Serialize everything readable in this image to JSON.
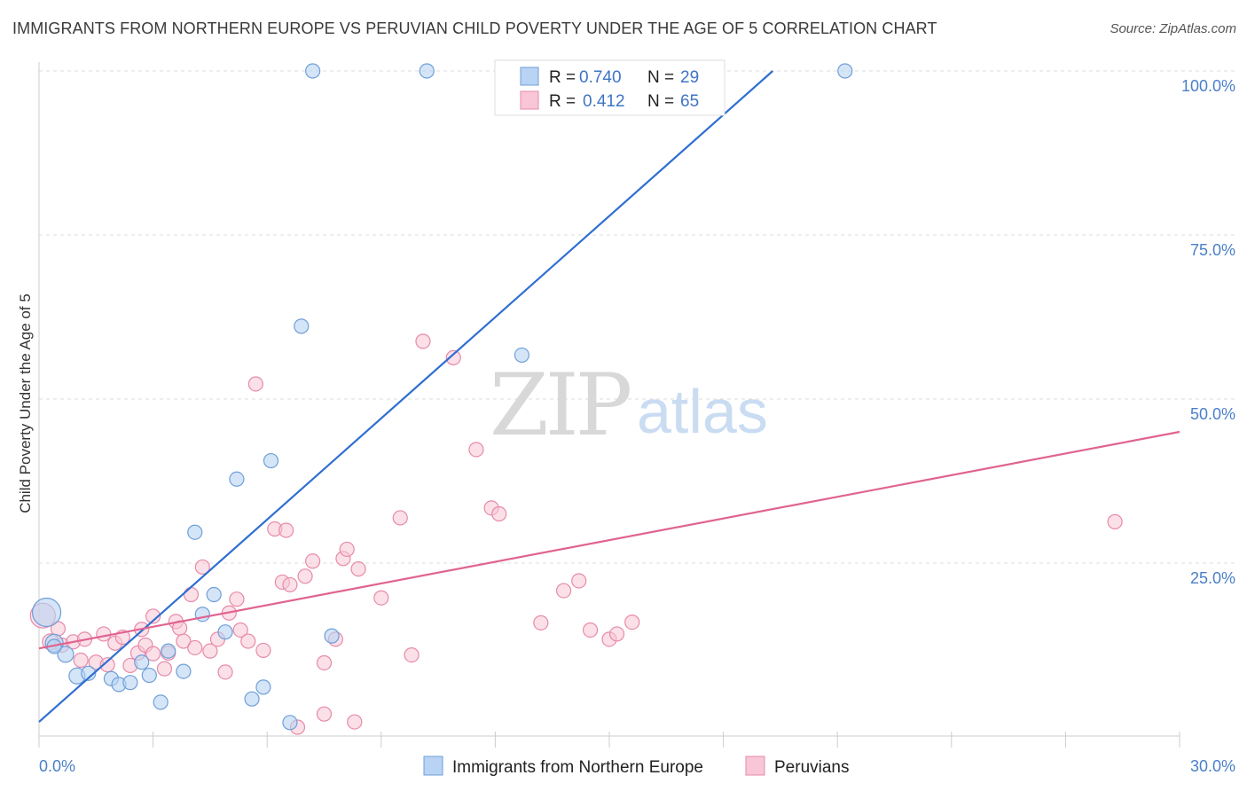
{
  "title": "IMMIGRANTS FROM NORTHERN EUROPE VS PERUVIAN CHILD POVERTY UNDER THE AGE OF 5 CORRELATION CHART",
  "source": "Source: ZipAtlas.com",
  "watermark": {
    "zip": "ZIP",
    "atlas": "atlas"
  },
  "colors": {
    "blue_fill": "#b8d3f4",
    "blue_stroke": "#6f9fd8",
    "blue_line": "#2f6fd1",
    "pink_fill": "#f8c6d6",
    "pink_stroke": "#e78aa8",
    "pink_line": "#e06391",
    "tick_text": "#4a7fc8",
    "grid": "#dddddd"
  },
  "legend": {
    "r_label": "R =",
    "n_label": "N =",
    "rows": [
      {
        "r": "0.740",
        "n": "29"
      },
      {
        "r": "0.412",
        "n": "65"
      }
    ]
  },
  "chart_data": {
    "type": "scatter",
    "xlabel": "",
    "ylabel": "Child Poverty Under the Age of 5",
    "xlim": [
      0,
      30
    ],
    "ylim": [
      0,
      100
    ],
    "x_tick_labels": [
      "0.0%",
      "30.0%"
    ],
    "y_ticks": [
      25,
      50,
      75,
      100
    ],
    "y_tick_labels": [
      "25.0%",
      "50.0%",
      "75.0%",
      "100.0%"
    ],
    "series": [
      {
        "name": "Immigrants from Northern Europe",
        "r": 0.74,
        "n": 29,
        "trend": {
          "x": [
            0,
            19.3
          ],
          "y": [
            0.8,
            100
          ]
        },
        "points": [
          [
            0.2,
            17.5,
            16
          ],
          [
            0.4,
            12.8,
            10
          ],
          [
            0.7,
            11.1,
            9
          ],
          [
            1.0,
            7.8,
            9
          ],
          [
            1.3,
            8.2,
            8
          ],
          [
            1.9,
            7.4,
            8
          ],
          [
            2.1,
            6.5,
            8
          ],
          [
            2.4,
            6.8,
            8
          ],
          [
            2.7,
            9.9,
            8
          ],
          [
            2.9,
            7.9,
            8
          ],
          [
            3.2,
            3.8,
            8
          ],
          [
            3.4,
            11.6,
            8
          ],
          [
            3.8,
            8.5,
            8
          ],
          [
            4.1,
            29.7,
            8
          ],
          [
            4.3,
            17.2,
            8
          ],
          [
            4.6,
            20.2,
            8
          ],
          [
            4.9,
            14.5,
            8
          ],
          [
            5.2,
            37.8,
            8
          ],
          [
            5.6,
            4.3,
            8
          ],
          [
            5.9,
            6.1,
            8
          ],
          [
            6.1,
            40.6,
            8
          ],
          [
            6.6,
            0.7,
            8
          ],
          [
            6.9,
            61.1,
            8
          ],
          [
            7.2,
            100,
            8
          ],
          [
            7.7,
            13.9,
            8
          ],
          [
            10.2,
            100,
            8
          ],
          [
            12.7,
            56.7,
            8
          ],
          [
            21.2,
            100,
            8
          ],
          [
            0.4,
            12.3,
            8
          ]
        ]
      },
      {
        "name": "Peruvians",
        "r": 0.412,
        "n": 65,
        "trend": {
          "x": [
            0,
            30
          ],
          "y": [
            12,
            45
          ]
        },
        "points": [
          [
            0.1,
            17.0,
            14
          ],
          [
            0.3,
            13.0,
            9
          ],
          [
            0.6,
            12.5,
            8
          ],
          [
            0.9,
            13.0,
            8
          ],
          [
            1.2,
            13.4,
            8
          ],
          [
            1.5,
            9.9,
            8
          ],
          [
            1.8,
            9.5,
            8
          ],
          [
            2.0,
            12.8,
            8
          ],
          [
            2.2,
            13.7,
            8
          ],
          [
            2.4,
            9.4,
            8
          ],
          [
            2.6,
            11.3,
            8
          ],
          [
            2.8,
            12.5,
            8
          ],
          [
            3.0,
            11.2,
            8
          ],
          [
            3.0,
            16.9,
            8
          ],
          [
            3.3,
            8.9,
            8
          ],
          [
            3.4,
            11.3,
            8
          ],
          [
            3.6,
            16.1,
            8
          ],
          [
            3.7,
            15.1,
            8
          ],
          [
            3.8,
            13.1,
            8
          ],
          [
            4.0,
            20.2,
            8
          ],
          [
            4.1,
            12.1,
            8
          ],
          [
            4.3,
            24.4,
            8
          ],
          [
            4.5,
            11.6,
            8
          ],
          [
            4.7,
            13.4,
            8
          ],
          [
            4.9,
            8.4,
            8
          ],
          [
            5.0,
            17.4,
            8
          ],
          [
            5.2,
            19.5,
            8
          ],
          [
            5.3,
            14.8,
            8
          ],
          [
            5.5,
            13.1,
            8
          ],
          [
            5.7,
            52.3,
            8
          ],
          [
            5.9,
            11.7,
            8
          ],
          [
            6.2,
            30.2,
            8
          ],
          [
            6.4,
            22.1,
            8
          ],
          [
            6.5,
            30.0,
            8
          ],
          [
            6.6,
            21.7,
            8
          ],
          [
            6.8,
            0.0,
            8
          ],
          [
            7.0,
            23.0,
            8
          ],
          [
            7.2,
            25.3,
            8
          ],
          [
            7.5,
            9.8,
            8
          ],
          [
            7.5,
            2.0,
            8
          ],
          [
            7.8,
            13.4,
            8
          ],
          [
            8.0,
            25.7,
            8
          ],
          [
            8.1,
            27.1,
            8
          ],
          [
            8.3,
            0.8,
            8
          ],
          [
            8.4,
            24.1,
            8
          ],
          [
            9.0,
            19.7,
            8
          ],
          [
            9.5,
            31.9,
            8
          ],
          [
            9.8,
            11.0,
            8
          ],
          [
            10.1,
            58.8,
            8
          ],
          [
            10.9,
            56.3,
            8
          ],
          [
            11.5,
            42.3,
            8
          ],
          [
            11.9,
            33.4,
            8
          ],
          [
            12.1,
            32.5,
            8
          ],
          [
            13.2,
            15.9,
            8
          ],
          [
            13.8,
            20.8,
            8
          ],
          [
            14.2,
            22.3,
            8
          ],
          [
            15.0,
            13.4,
            8
          ],
          [
            15.6,
            16.0,
            8
          ],
          [
            15.2,
            14.2,
            8
          ],
          [
            14.5,
            14.8,
            8
          ],
          [
            28.3,
            31.3,
            8
          ],
          [
            0.5,
            15.0,
            8
          ],
          [
            1.1,
            10.2,
            8
          ],
          [
            1.7,
            14.2,
            8
          ],
          [
            2.7,
            14.9,
            8
          ]
        ]
      }
    ]
  },
  "bottom_legend": [
    {
      "label": "Immigrants from Northern Europe"
    },
    {
      "label": "Peruvians"
    }
  ]
}
